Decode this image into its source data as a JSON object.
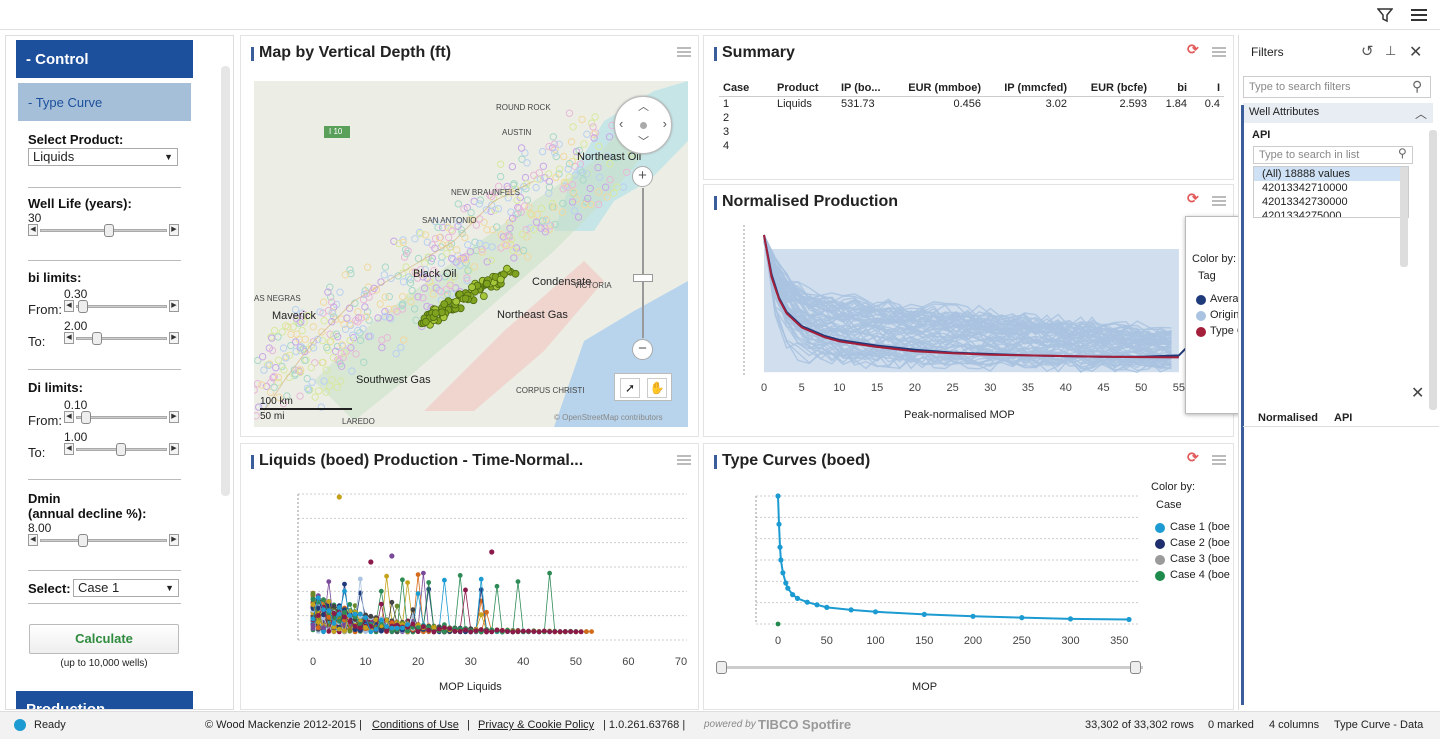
{
  "control": {
    "header": "- Control",
    "type_curve_header": "- Type Curve",
    "select_product_label": "Select Product:",
    "product_value": "Liquids",
    "well_life_label": "Well Life (years):",
    "well_life_value": "30",
    "bi_label": "bi limits:",
    "bi_from_label": "From:",
    "bi_from_value": "0.30",
    "bi_to_label": "To:",
    "bi_to_value": "2.00",
    "di_label": "Di limits:",
    "di_from_label": "From:",
    "di_from_value": "0.10",
    "di_to_label": "To:",
    "di_to_value": "1.00",
    "dmin_label": "Dmin",
    "dmin_sub": "(annual decline %):",
    "dmin_value": "8.00",
    "select_label": "Select:",
    "case_value": "Case 1",
    "calculate_label": "Calculate",
    "calculate_note": "(up to 10,000 wells)",
    "production_header": "Production"
  },
  "map": {
    "title": "Map by Vertical Depth (ft)",
    "places": [
      "ROUND ROCK",
      "AUSTIN",
      "Northeast Oil",
      "NEW BRAUNFELS",
      "SAN ANTONIO",
      "Black Oil",
      "Condensate",
      "VICTORIA",
      "AS NEGRAS",
      "Maverick",
      "Northeast Gas",
      "Southwest Gas",
      "CORPUS CHRISTI",
      "LAREDO"
    ],
    "highway": "I 10",
    "scale_km": "100 km",
    "scale_mi": "50 mi",
    "attribution": "© OpenStreetMap contributors"
  },
  "summary": {
    "title": "Summary",
    "columns": [
      "Case",
      "Product",
      "IP (bo...",
      "EUR (mmboe)",
      "IP (mmcfed)",
      "EUR (bcfe)",
      "bi",
      "I"
    ],
    "rows": [
      [
        "1",
        "Liquids",
        "531.73",
        "0.456",
        "3.02",
        "2.593",
        "1.84",
        "0.4"
      ],
      [
        "2",
        "",
        "",
        "",
        "",
        "",
        "",
        ""
      ],
      [
        "3",
        "",
        "",
        "",
        "",
        "",
        "",
        ""
      ],
      [
        "4",
        "",
        "",
        "",
        "",
        "",
        "",
        ""
      ]
    ]
  },
  "normalised": {
    "title": "Normalised Production",
    "xlabel": "Peak-normalised MOP"
  },
  "legend_popup": {
    "color_by": "Color by:",
    "tag": "Tag",
    "items": [
      {
        "label": "Average",
        "color": "#1f3a7a"
      },
      {
        "label": "Original",
        "color": "#a9c3e0"
      },
      {
        "label": "Type Curve",
        "color": "#a31f3a"
      }
    ]
  },
  "liquids": {
    "title": "Liquids (boed) Production - Time-Normal...",
    "xlabel": "MOP Liquids"
  },
  "typecurves": {
    "title": "Type Curves (boed)",
    "xlabel": "MOP",
    "legend_color_by": "Color by:",
    "legend_case": "Case",
    "legend_items": [
      {
        "label": "Case 1 (boe",
        "color": "#1b9bd1"
      },
      {
        "label": "Case 2 (boe",
        "color": "#1f2f6e"
      },
      {
        "label": "Case 3 (boe",
        "color": "#9a9a9a"
      },
      {
        "label": "Case 4 (boe",
        "color": "#1e8a4c"
      }
    ]
  },
  "filters": {
    "title": "Filters",
    "search_placeholder": "Type to search filters",
    "group": "Well Attributes",
    "api_label": "API",
    "list_placeholder": "Type to search in list",
    "items": [
      "(All) 18888 values",
      "42013342710000",
      "42013342730000",
      "4201334275000"
    ],
    "details_cols": [
      "Normalised",
      "API"
    ]
  },
  "status": {
    "ready": "Ready",
    "copyright": "© Wood Mackenzie 2012-2015 |",
    "conditions": "Conditions of Use",
    "sep1": "|",
    "privacy": "Privacy & Cookie Policy",
    "version": "| 1.0.261.63768 |",
    "powered": "powered by",
    "brand": "TIBCO Spotfire",
    "rows": "33,302 of 33,302 rows",
    "marked": "0 marked",
    "columns": "4 columns",
    "page": "Type Curve - Data"
  },
  "chart_data": [
    {
      "type": "line",
      "title": "Normalised Production",
      "xlabel": "Peak-normalised MOP",
      "x_ticks": [
        0,
        5,
        10,
        15,
        20,
        25,
        30,
        35,
        40,
        45,
        50,
        55
      ],
      "series": [
        {
          "name": "Average",
          "x": [
            0,
            1,
            2,
            3,
            5,
            8,
            10,
            15,
            20,
            25,
            30,
            35,
            40,
            45,
            50,
            55,
            57
          ],
          "y": [
            1.0,
            0.72,
            0.55,
            0.45,
            0.35,
            0.28,
            0.25,
            0.21,
            0.18,
            0.16,
            0.15,
            0.14,
            0.135,
            0.13,
            0.13,
            0.14,
            0.25
          ]
        },
        {
          "name": "Type Curve",
          "x": [
            0,
            1,
            2,
            3,
            5,
            8,
            10,
            15,
            20,
            25,
            30,
            35,
            40,
            45,
            50,
            55
          ],
          "y": [
            1.0,
            0.7,
            0.54,
            0.44,
            0.34,
            0.27,
            0.24,
            0.2,
            0.17,
            0.155,
            0.145,
            0.14,
            0.135,
            0.13,
            0.128,
            0.126
          ]
        }
      ]
    },
    {
      "type": "scatter",
      "title": "Liquids (boed) Production - Time-Normal...",
      "xlabel": "MOP Liquids",
      "x_ticks": [
        0,
        10,
        20,
        30,
        40,
        50,
        60,
        70
      ]
    },
    {
      "type": "line",
      "title": "Type Curves (boed)",
      "xlabel": "MOP",
      "x_ticks": [
        0,
        50,
        100,
        150,
        200,
        250,
        300,
        350
      ],
      "series": [
        {
          "name": "Case 1 (boe",
          "x": [
            0,
            1,
            2,
            3,
            5,
            8,
            10,
            15,
            20,
            30,
            40,
            50,
            75,
            100,
            150,
            200,
            250,
            300,
            360
          ],
          "y": [
            1.0,
            0.78,
            0.6,
            0.5,
            0.4,
            0.32,
            0.28,
            0.23,
            0.2,
            0.17,
            0.15,
            0.13,
            0.11,
            0.095,
            0.075,
            0.06,
            0.05,
            0.04,
            0.035
          ]
        }
      ]
    }
  ]
}
